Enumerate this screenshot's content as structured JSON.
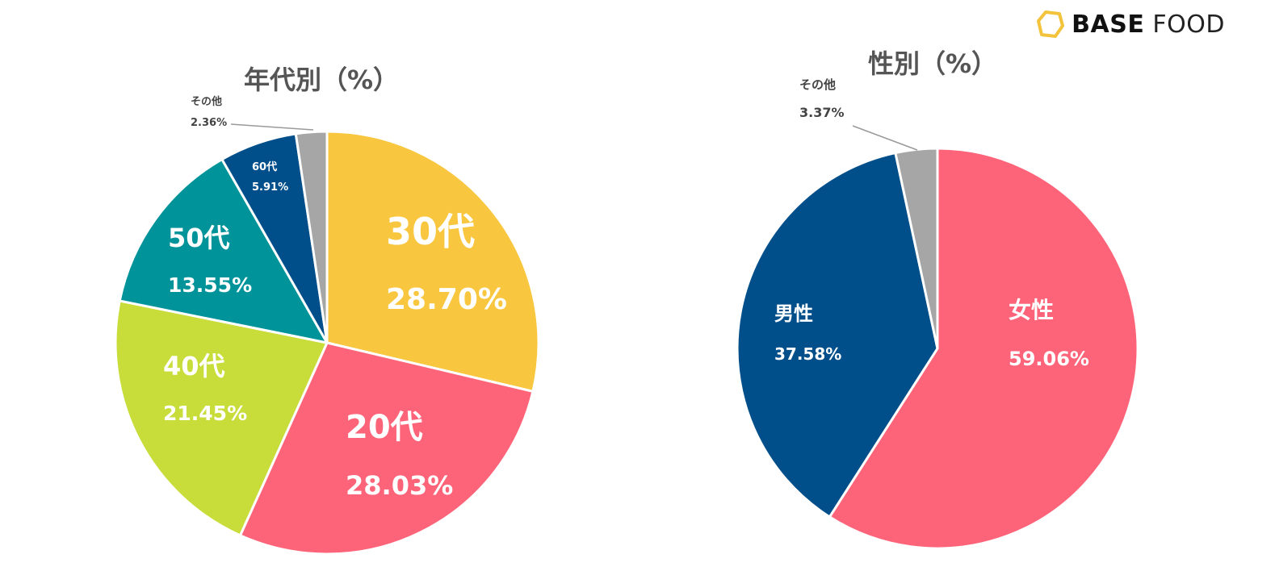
{
  "logo": {
    "brand_bold": "BASE",
    "brand_light": "FOOD",
    "accent": "#F3C33C"
  },
  "chart_data": [
    {
      "type": "pie",
      "title": "年代別（%）",
      "slices": [
        {
          "name": "30代",
          "value": 28.7,
          "label": "28.70%",
          "color": "#F8C73F"
        },
        {
          "name": "20代",
          "value": 28.03,
          "label": "28.03%",
          "color": "#FE6479"
        },
        {
          "name": "40代",
          "value": 21.45,
          "label": "21.45%",
          "color": "#C8DC3A"
        },
        {
          "name": "50代",
          "value": 13.55,
          "label": "13.55%",
          "color": "#00939A"
        },
        {
          "name": "60代",
          "value": 5.91,
          "label": "5.91%",
          "color": "#004F8A"
        },
        {
          "name": "その他",
          "value": 2.36,
          "label": "2.36%",
          "color": "#A6A6A6"
        }
      ]
    },
    {
      "type": "pie",
      "title": "性別（%）",
      "slices": [
        {
          "name": "女性",
          "value": 59.06,
          "label": "59.06%",
          "color": "#FE6479"
        },
        {
          "name": "男性",
          "value": 37.58,
          "label": "37.58%",
          "color": "#004F8A"
        },
        {
          "name": "その他",
          "value": 3.37,
          "label": "3.37%",
          "color": "#A6A6A6"
        }
      ]
    }
  ]
}
